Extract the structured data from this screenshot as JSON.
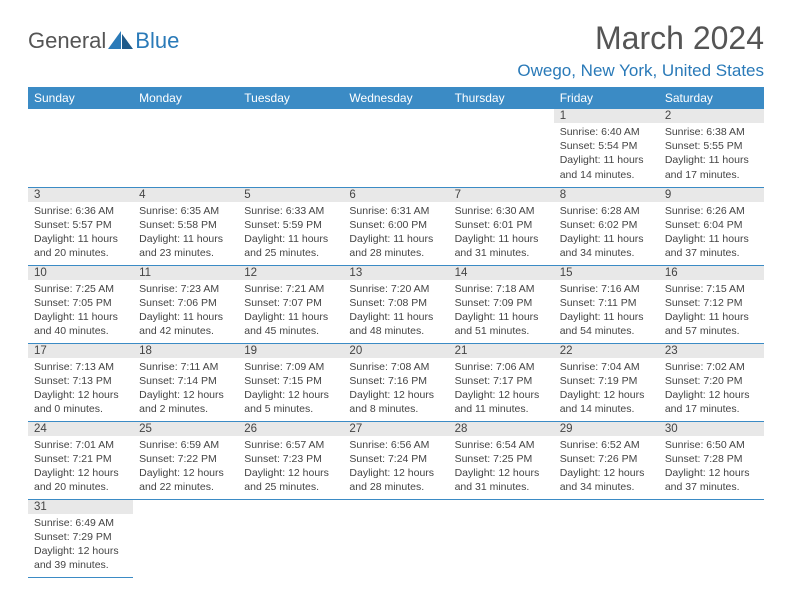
{
  "brand": {
    "part1": "General",
    "part2": "Blue"
  },
  "title": "March 2024",
  "location": "Owego, New York, United States",
  "colors": {
    "header_bg": "#3b8bc5",
    "header_text": "#ffffff",
    "daynum_bg": "#e8e8e8",
    "border": "#3b8bc5",
    "brand_blue": "#2a7ab8",
    "text": "#444444"
  },
  "weekdays": [
    "Sunday",
    "Monday",
    "Tuesday",
    "Wednesday",
    "Thursday",
    "Friday",
    "Saturday"
  ],
  "weeks": [
    [
      null,
      null,
      null,
      null,
      null,
      {
        "n": "1",
        "sr": "Sunrise: 6:40 AM",
        "ss": "Sunset: 5:54 PM",
        "dl1": "Daylight: 11 hours",
        "dl2": "and 14 minutes."
      },
      {
        "n": "2",
        "sr": "Sunrise: 6:38 AM",
        "ss": "Sunset: 5:55 PM",
        "dl1": "Daylight: 11 hours",
        "dl2": "and 17 minutes."
      }
    ],
    [
      {
        "n": "3",
        "sr": "Sunrise: 6:36 AM",
        "ss": "Sunset: 5:57 PM",
        "dl1": "Daylight: 11 hours",
        "dl2": "and 20 minutes."
      },
      {
        "n": "4",
        "sr": "Sunrise: 6:35 AM",
        "ss": "Sunset: 5:58 PM",
        "dl1": "Daylight: 11 hours",
        "dl2": "and 23 minutes."
      },
      {
        "n": "5",
        "sr": "Sunrise: 6:33 AM",
        "ss": "Sunset: 5:59 PM",
        "dl1": "Daylight: 11 hours",
        "dl2": "and 25 minutes."
      },
      {
        "n": "6",
        "sr": "Sunrise: 6:31 AM",
        "ss": "Sunset: 6:00 PM",
        "dl1": "Daylight: 11 hours",
        "dl2": "and 28 minutes."
      },
      {
        "n": "7",
        "sr": "Sunrise: 6:30 AM",
        "ss": "Sunset: 6:01 PM",
        "dl1": "Daylight: 11 hours",
        "dl2": "and 31 minutes."
      },
      {
        "n": "8",
        "sr": "Sunrise: 6:28 AM",
        "ss": "Sunset: 6:02 PM",
        "dl1": "Daylight: 11 hours",
        "dl2": "and 34 minutes."
      },
      {
        "n": "9",
        "sr": "Sunrise: 6:26 AM",
        "ss": "Sunset: 6:04 PM",
        "dl1": "Daylight: 11 hours",
        "dl2": "and 37 minutes."
      }
    ],
    [
      {
        "n": "10",
        "sr": "Sunrise: 7:25 AM",
        "ss": "Sunset: 7:05 PM",
        "dl1": "Daylight: 11 hours",
        "dl2": "and 40 minutes."
      },
      {
        "n": "11",
        "sr": "Sunrise: 7:23 AM",
        "ss": "Sunset: 7:06 PM",
        "dl1": "Daylight: 11 hours",
        "dl2": "and 42 minutes."
      },
      {
        "n": "12",
        "sr": "Sunrise: 7:21 AM",
        "ss": "Sunset: 7:07 PM",
        "dl1": "Daylight: 11 hours",
        "dl2": "and 45 minutes."
      },
      {
        "n": "13",
        "sr": "Sunrise: 7:20 AM",
        "ss": "Sunset: 7:08 PM",
        "dl1": "Daylight: 11 hours",
        "dl2": "and 48 minutes."
      },
      {
        "n": "14",
        "sr": "Sunrise: 7:18 AM",
        "ss": "Sunset: 7:09 PM",
        "dl1": "Daylight: 11 hours",
        "dl2": "and 51 minutes."
      },
      {
        "n": "15",
        "sr": "Sunrise: 7:16 AM",
        "ss": "Sunset: 7:11 PM",
        "dl1": "Daylight: 11 hours",
        "dl2": "and 54 minutes."
      },
      {
        "n": "16",
        "sr": "Sunrise: 7:15 AM",
        "ss": "Sunset: 7:12 PM",
        "dl1": "Daylight: 11 hours",
        "dl2": "and 57 minutes."
      }
    ],
    [
      {
        "n": "17",
        "sr": "Sunrise: 7:13 AM",
        "ss": "Sunset: 7:13 PM",
        "dl1": "Daylight: 12 hours",
        "dl2": "and 0 minutes."
      },
      {
        "n": "18",
        "sr": "Sunrise: 7:11 AM",
        "ss": "Sunset: 7:14 PM",
        "dl1": "Daylight: 12 hours",
        "dl2": "and 2 minutes."
      },
      {
        "n": "19",
        "sr": "Sunrise: 7:09 AM",
        "ss": "Sunset: 7:15 PM",
        "dl1": "Daylight: 12 hours",
        "dl2": "and 5 minutes."
      },
      {
        "n": "20",
        "sr": "Sunrise: 7:08 AM",
        "ss": "Sunset: 7:16 PM",
        "dl1": "Daylight: 12 hours",
        "dl2": "and 8 minutes."
      },
      {
        "n": "21",
        "sr": "Sunrise: 7:06 AM",
        "ss": "Sunset: 7:17 PM",
        "dl1": "Daylight: 12 hours",
        "dl2": "and 11 minutes."
      },
      {
        "n": "22",
        "sr": "Sunrise: 7:04 AM",
        "ss": "Sunset: 7:19 PM",
        "dl1": "Daylight: 12 hours",
        "dl2": "and 14 minutes."
      },
      {
        "n": "23",
        "sr": "Sunrise: 7:02 AM",
        "ss": "Sunset: 7:20 PM",
        "dl1": "Daylight: 12 hours",
        "dl2": "and 17 minutes."
      }
    ],
    [
      {
        "n": "24",
        "sr": "Sunrise: 7:01 AM",
        "ss": "Sunset: 7:21 PM",
        "dl1": "Daylight: 12 hours",
        "dl2": "and 20 minutes."
      },
      {
        "n": "25",
        "sr": "Sunrise: 6:59 AM",
        "ss": "Sunset: 7:22 PM",
        "dl1": "Daylight: 12 hours",
        "dl2": "and 22 minutes."
      },
      {
        "n": "26",
        "sr": "Sunrise: 6:57 AM",
        "ss": "Sunset: 7:23 PM",
        "dl1": "Daylight: 12 hours",
        "dl2": "and 25 minutes."
      },
      {
        "n": "27",
        "sr": "Sunrise: 6:56 AM",
        "ss": "Sunset: 7:24 PM",
        "dl1": "Daylight: 12 hours",
        "dl2": "and 28 minutes."
      },
      {
        "n": "28",
        "sr": "Sunrise: 6:54 AM",
        "ss": "Sunset: 7:25 PM",
        "dl1": "Daylight: 12 hours",
        "dl2": "and 31 minutes."
      },
      {
        "n": "29",
        "sr": "Sunrise: 6:52 AM",
        "ss": "Sunset: 7:26 PM",
        "dl1": "Daylight: 12 hours",
        "dl2": "and 34 minutes."
      },
      {
        "n": "30",
        "sr": "Sunrise: 6:50 AM",
        "ss": "Sunset: 7:28 PM",
        "dl1": "Daylight: 12 hours",
        "dl2": "and 37 minutes."
      }
    ],
    [
      {
        "n": "31",
        "sr": "Sunrise: 6:49 AM",
        "ss": "Sunset: 7:29 PM",
        "dl1": "Daylight: 12 hours",
        "dl2": "and 39 minutes."
      },
      null,
      null,
      null,
      null,
      null,
      null
    ]
  ]
}
